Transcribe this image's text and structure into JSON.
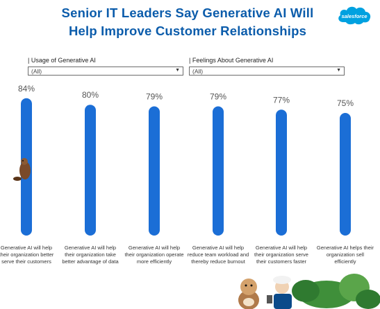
{
  "brand": {
    "logo_text": "salesforce"
  },
  "filters": [
    {
      "label": "| Usage of Generative AI",
      "value": "(All)"
    },
    {
      "label": "| Feelings About Generative AI",
      "value": "(All)"
    }
  ],
  "chart_data": {
    "type": "bar",
    "orientation": "vertical",
    "title": "Senior IT Leaders Say Generative AI Will Help Improve Customer Relationships",
    "title_lines": [
      "Senior IT Leaders Say Generative AI Will",
      "Help Improve Customer Relationships"
    ],
    "categories": [
      "Generative AI will help their organization better serve their customers",
      "Generative AI will help their organization take better advantage of data",
      "Generative AI will help their organization operate more efficiently",
      "Generative AI will help reduce team workload and thereby reduce burnout",
      "Generative AI will help their organization serve their customers faster",
      "Generative AI helps their organization sell efficiently"
    ],
    "category_lines": [
      [
        "Generative AI will help",
        "their organization better",
        "serve their customers"
      ],
      [
        "Generative AI will help",
        "their organization take",
        "better advantage of data"
      ],
      [
        "Generative AI will help",
        "their organization operate",
        "more efficiently"
      ],
      [
        "Generative AI will help",
        "reduce team workload and",
        "thereby reduce burnout"
      ],
      [
        "Generative AI will help",
        "their organization serve",
        "their customers faster"
      ],
      [
        "Generative AI helps their",
        "organization sell",
        "efficiently"
      ]
    ],
    "values": [
      84,
      80,
      79,
      79,
      77,
      75
    ],
    "data_labels": [
      "84%",
      "80%",
      "79%",
      "79%",
      "77%",
      "75%"
    ],
    "unit": "%",
    "ylim": [
      0,
      100
    ],
    "bar_color": "#1b6ed6",
    "grid": false,
    "legend": "none"
  }
}
